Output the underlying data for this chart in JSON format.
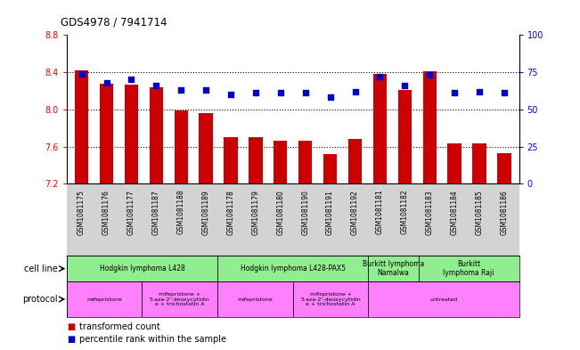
{
  "title": "GDS4978 / 7941714",
  "samples": [
    "GSM1081175",
    "GSM1081176",
    "GSM1081177",
    "GSM1081187",
    "GSM1081188",
    "GSM1081189",
    "GSM1081178",
    "GSM1081179",
    "GSM1081180",
    "GSM1081190",
    "GSM1081191",
    "GSM1081192",
    "GSM1081181",
    "GSM1081182",
    "GSM1081183",
    "GSM1081184",
    "GSM1081185",
    "GSM1081186"
  ],
  "bar_values": [
    8.42,
    8.28,
    8.27,
    8.24,
    7.99,
    7.96,
    7.7,
    7.7,
    7.66,
    7.66,
    7.52,
    7.68,
    8.38,
    8.21,
    8.41,
    7.63,
    7.63,
    7.53
  ],
  "percentile_values": [
    74,
    68,
    70,
    66,
    63,
    63,
    60,
    61,
    61,
    61,
    58,
    62,
    72,
    66,
    73,
    61,
    62,
    61
  ],
  "ylim_left": [
    7.2,
    8.8
  ],
  "ylim_right": [
    0,
    100
  ],
  "yticks_left": [
    7.2,
    7.6,
    8.0,
    8.4,
    8.8
  ],
  "yticks_right": [
    0,
    25,
    50,
    75,
    100
  ],
  "bar_color": "#cc0000",
  "dot_color": "#0000cc",
  "bg_color": "#ffffff",
  "cell_line_groups": [
    {
      "label": "Hodgkin lymphoma L428",
      "start": 0,
      "end": 6,
      "color": "#90ee90"
    },
    {
      "label": "Hodgkin lymphoma L428-PAX5",
      "start": 6,
      "end": 12,
      "color": "#90ee90"
    },
    {
      "label": "Burkitt lymphoma\nNamalwa",
      "start": 12,
      "end": 14,
      "color": "#90ee90"
    },
    {
      "label": "Burkitt\nlymphoma Raji",
      "start": 14,
      "end": 18,
      "color": "#90ee90"
    }
  ],
  "protocol_groups": [
    {
      "label": "mifepristone",
      "start": 0,
      "end": 3,
      "color": "#ff80ff"
    },
    {
      "label": "mifepristone +\n5-aza-2'-deoxycytidin\ne + trichostatin A",
      "start": 3,
      "end": 6,
      "color": "#ff80ff"
    },
    {
      "label": "mifepristone",
      "start": 6,
      "end": 9,
      "color": "#ff80ff"
    },
    {
      "label": "mifepristone +\n5-aza-2'-deoxycytidin\ne + trichostatin A",
      "start": 9,
      "end": 12,
      "color": "#ff80ff"
    },
    {
      "label": "untreated",
      "start": 12,
      "end": 18,
      "color": "#ff80ff"
    }
  ],
  "cell_line_label": "cell line",
  "protocol_label": "protocol",
  "legend_bar": "transformed count",
  "legend_dot": "percentile rank within the sample"
}
